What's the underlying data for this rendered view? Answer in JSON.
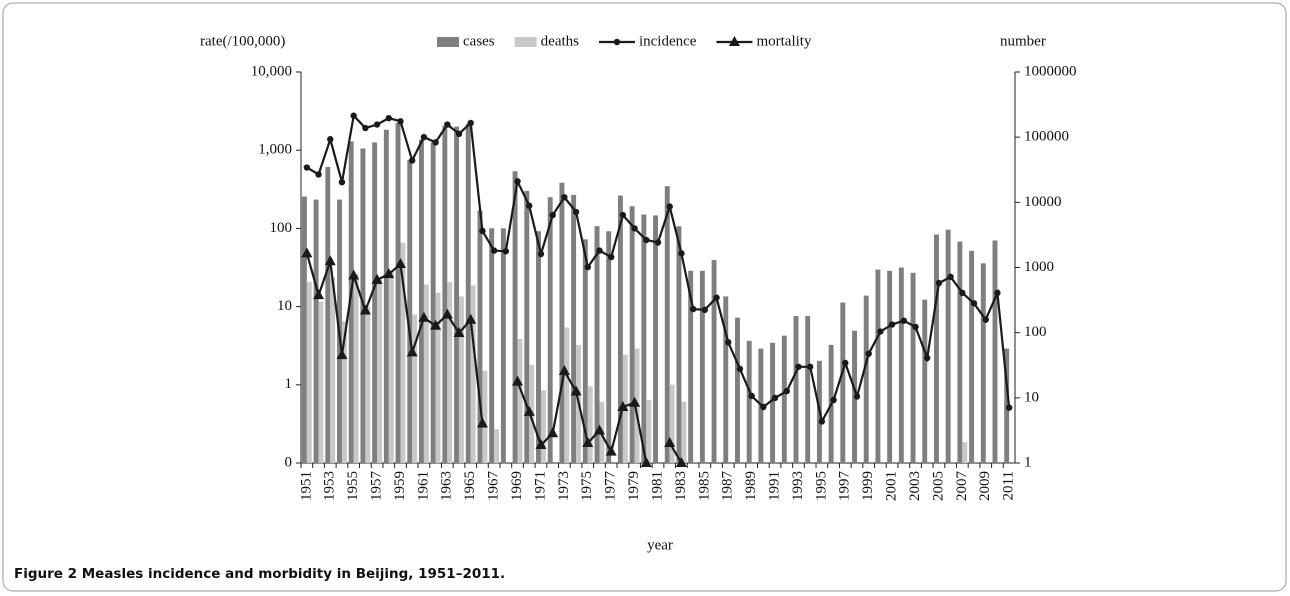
{
  "chart_data": {
    "type": "bar",
    "caption": "Figure 2 Measles incidence and morbidity in Beijing, 1951–2011.",
    "y_label": "rate(/100,000)",
    "y2_label": "number",
    "x_label": "year",
    "log_y": true,
    "log_y2": true,
    "categories": [
      "1951",
      null,
      "1953",
      null,
      "1955",
      null,
      "1957",
      null,
      "1959",
      null,
      "1961",
      null,
      "1963",
      null,
      "1965",
      null,
      "1967",
      null,
      "1969",
      null,
      "1971",
      null,
      "1973",
      null,
      "1975",
      null,
      "1977",
      null,
      "1979",
      null,
      "1981",
      null,
      "1983",
      null,
      "1985",
      null,
      "1987",
      null,
      "1989",
      null,
      "1991",
      null,
      "1993",
      null,
      "1995",
      null,
      "1997",
      null,
      "1999",
      null,
      "2001",
      null,
      "2003",
      null,
      "2005",
      null,
      "2007",
      null,
      "2009",
      null,
      "2011"
    ],
    "ylim": [
      0.1,
      10000
    ],
    "yticks": [
      {
        "value": 0.1,
        "label": "0"
      },
      1,
      10,
      100,
      {
        "value": 1000,
        "label": "1,000"
      },
      {
        "value": 10000,
        "label": "10,000"
      }
    ],
    "y2lim": [
      1,
      1000000
    ],
    "y2ticks": [
      1,
      10,
      100,
      1000,
      10000,
      100000,
      1000000
    ],
    "series": [
      {
        "name": "cases",
        "type": "bar",
        "axis": "y2",
        "color": "#7f7f7f",
        "values": [
          12300,
          11000,
          35000,
          11000,
          86000,
          67000,
          83000,
          130000,
          165000,
          45000,
          92000,
          83000,
          150000,
          145000,
          160000,
          7500,
          4000,
          4000,
          30000,
          15000,
          3600,
          12000,
          20000,
          13000,
          2700,
          4300,
          3600,
          12700,
          8700,
          6500,
          6300,
          17700,
          4300,
          890,
          890,
          1300,
          360,
          170,
          75,
          57,
          70,
          90,
          180,
          180,
          37,
          65,
          290,
          107,
          370,
          930,
          890,
          1000,
          830,
          320,
          3200,
          3800,
          2500,
          1800,
          1160,
          2600,
          57
        ]
      },
      {
        "name": "deaths",
        "type": "bar",
        "axis": "y2",
        "color": "#c8c8c8",
        "values": [
          600,
          300,
          700,
          150,
          800,
          250,
          700,
          900,
          2400,
          190,
          550,
          410,
          600,
          360,
          530,
          26,
          3.3,
          null,
          80,
          32,
          13,
          null,
          120,
          65,
          15,
          8.7,
          null,
          46,
          57,
          9.3,
          null,
          16,
          8.7,
          null,
          null,
          null,
          null,
          null,
          null,
          null,
          null,
          null,
          null,
          null,
          null,
          null,
          null,
          null,
          null,
          null,
          null,
          null,
          null,
          null,
          null,
          null,
          2.1,
          null,
          null,
          null,
          null
        ]
      },
      {
        "name": "incidence",
        "type": "line",
        "axis": "y",
        "color": "#1a1a1a",
        "marker": "circle",
        "values": [
          600,
          490,
          1380,
          390,
          2760,
          1920,
          2130,
          2570,
          2340,
          740,
          1470,
          1260,
          2130,
          1620,
          2230,
          93,
          52,
          51,
          400,
          195,
          47,
          148,
          250,
          162,
          32,
          52,
          43,
          148,
          100,
          71,
          66,
          190,
          48,
          9.3,
          9.1,
          13,
          3.5,
          1.6,
          0.72,
          0.52,
          0.68,
          0.83,
          1.7,
          1.7,
          0.34,
          0.64,
          1.9,
          0.71,
          2.5,
          4.8,
          5.9,
          6.6,
          5.5,
          2.2,
          20,
          24,
          15,
          11,
          6.8,
          15,
          0.51
        ]
      },
      {
        "name": "mortality",
        "type": "line",
        "axis": "y",
        "color": "#1a1a1a",
        "marker": "triangle",
        "values": [
          48,
          14,
          38,
          2.4,
          25,
          8.9,
          22,
          26,
          35,
          2.6,
          7.2,
          5.7,
          7.9,
          4.6,
          6.8,
          0.32,
          null,
          null,
          1.1,
          0.45,
          0.17,
          0.24,
          1.5,
          0.82,
          0.18,
          0.26,
          0.14,
          0.52,
          0.59,
          0.1,
          null,
          0.18,
          0.1,
          null,
          null,
          null,
          null,
          null,
          null,
          null,
          null,
          null,
          null,
          null,
          null,
          null,
          null,
          null,
          null,
          null,
          null,
          null,
          null,
          null,
          null,
          null,
          null,
          null,
          null,
          null,
          null
        ]
      }
    ]
  }
}
